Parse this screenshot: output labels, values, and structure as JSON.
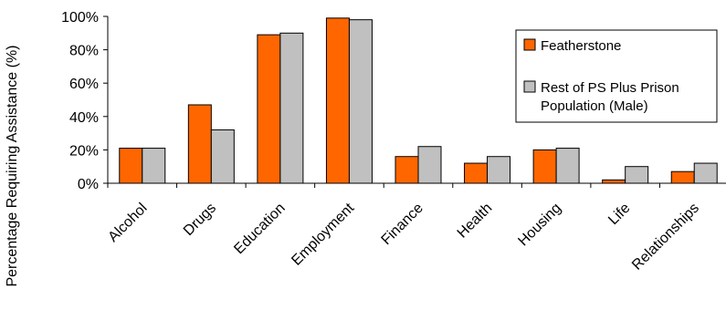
{
  "chart_data": {
    "type": "bar",
    "title": "",
    "xlabel": "",
    "ylabel": "Percentage Requiring Assistance (%)",
    "ylim": [
      0,
      100
    ],
    "yticks": [
      "0%",
      "20%",
      "40%",
      "60%",
      "80%",
      "100%"
    ],
    "categories": [
      "Alcohol",
      "Drugs",
      "Education",
      "Employment",
      "Finance",
      "Health",
      "Housing",
      "Life",
      "Relationships"
    ],
    "series": [
      {
        "name": "Featherstone",
        "color": "#FF6600",
        "values": [
          21,
          47,
          89,
          99,
          16,
          12,
          20,
          2,
          7
        ]
      },
      {
        "name": "Rest of PS Plus Prison Population (Male)",
        "color": "#C0C0C0",
        "values": [
          21,
          32,
          90,
          98,
          22,
          16,
          21,
          10,
          12
        ]
      }
    ],
    "legend": {
      "position": "right",
      "entries": [
        [
          "Featherstone"
        ],
        [
          "Rest of PS Plus Prison",
          "Population (Male)"
        ]
      ]
    },
    "grid": false
  }
}
